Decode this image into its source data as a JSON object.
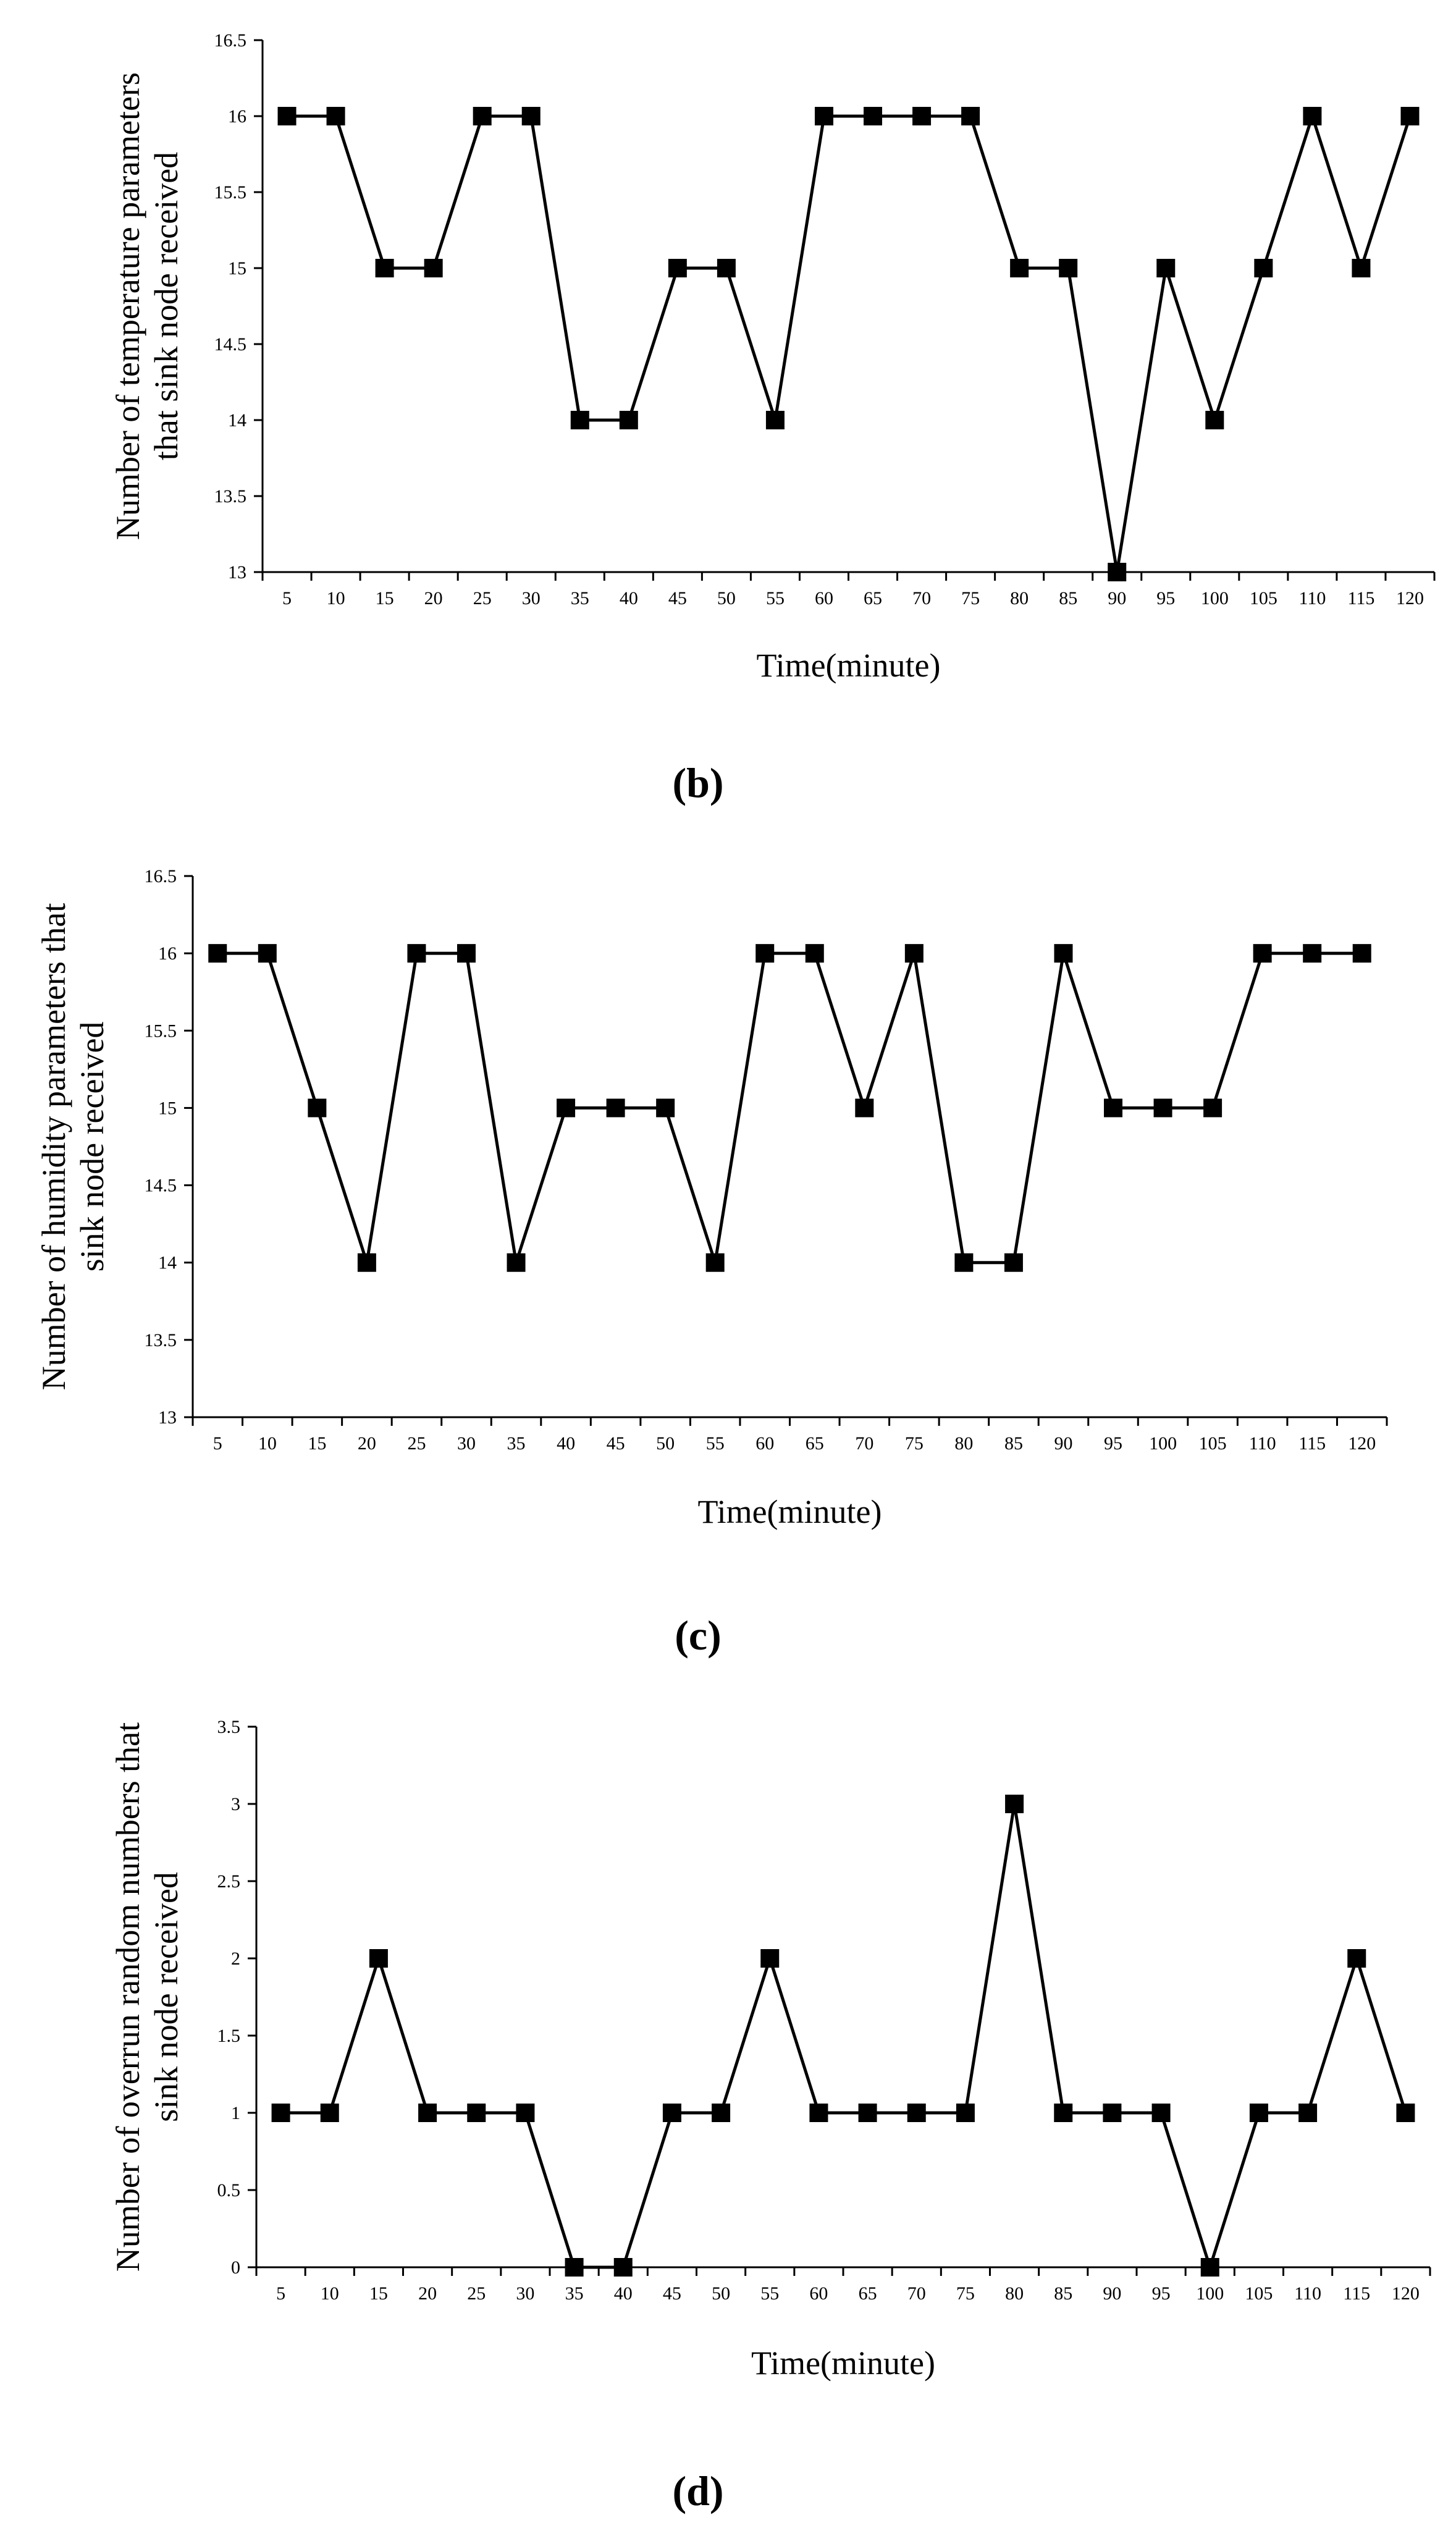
{
  "chart_data": [
    {
      "type": "line",
      "panel_label": "(b)",
      "xlabel": "Time(minute)",
      "ylabel_lines": [
        "Number of temperature parameters",
        "that sink node received"
      ],
      "categories": [
        "5",
        "10",
        "15",
        "20",
        "25",
        "30",
        "35",
        "40",
        "45",
        "50",
        "55",
        "60",
        "65",
        "70",
        "75",
        "80",
        "85",
        "90",
        "95",
        "100",
        "105",
        "110",
        "115",
        "120"
      ],
      "values": [
        16,
        16,
        15,
        15,
        16,
        16,
        14,
        14,
        15,
        15,
        14,
        16,
        16,
        16,
        16,
        15,
        15,
        13,
        15,
        14,
        15,
        16,
        15,
        16
      ],
      "ylim": [
        13,
        16.5
      ],
      "yticks": [
        "13",
        "13.5",
        "14",
        "14.5",
        "15",
        "15.5",
        "16",
        "16.5"
      ],
      "marker": "square",
      "grid": false
    },
    {
      "type": "line",
      "panel_label": "(c)",
      "xlabel": "Time(minute)",
      "ylabel_lines": [
        "Number of humidity parameters that",
        "sink node received"
      ],
      "categories": [
        "5",
        "10",
        "15",
        "20",
        "25",
        "30",
        "35",
        "40",
        "45",
        "50",
        "55",
        "60",
        "65",
        "70",
        "75",
        "80",
        "85",
        "90",
        "95",
        "100",
        "105",
        "110",
        "115",
        "120"
      ],
      "values": [
        16,
        16,
        15,
        14,
        16,
        16,
        14,
        15,
        15,
        15,
        14,
        16,
        16,
        15,
        16,
        14,
        14,
        16,
        15,
        15,
        15,
        16,
        16,
        16
      ],
      "ylim": [
        13,
        16.5
      ],
      "yticks": [
        "13",
        "13.5",
        "14",
        "14.5",
        "15",
        "15.5",
        "16",
        "16.5"
      ],
      "marker": "square",
      "grid": false
    },
    {
      "type": "line",
      "panel_label": "(d)",
      "xlabel": "Time(minute)",
      "ylabel_lines": [
        "Number of overrun random numbers that",
        "sink node received"
      ],
      "categories": [
        "5",
        "10",
        "15",
        "20",
        "25",
        "30",
        "35",
        "40",
        "45",
        "50",
        "55",
        "60",
        "65",
        "70",
        "75",
        "80",
        "85",
        "90",
        "95",
        "100",
        "105",
        "110",
        "115",
        "120"
      ],
      "values": [
        1,
        1,
        2,
        1,
        1,
        1,
        0,
        0,
        1,
        1,
        2,
        1,
        1,
        1,
        1,
        3,
        1,
        1,
        1,
        0,
        1,
        1,
        2,
        1
      ],
      "ylim": [
        0,
        3.5
      ],
      "yticks": [
        "0",
        "0.5",
        "1",
        "1.5",
        "2",
        "2.5",
        "3",
        "3.5"
      ],
      "marker": "square",
      "grid": false
    }
  ]
}
